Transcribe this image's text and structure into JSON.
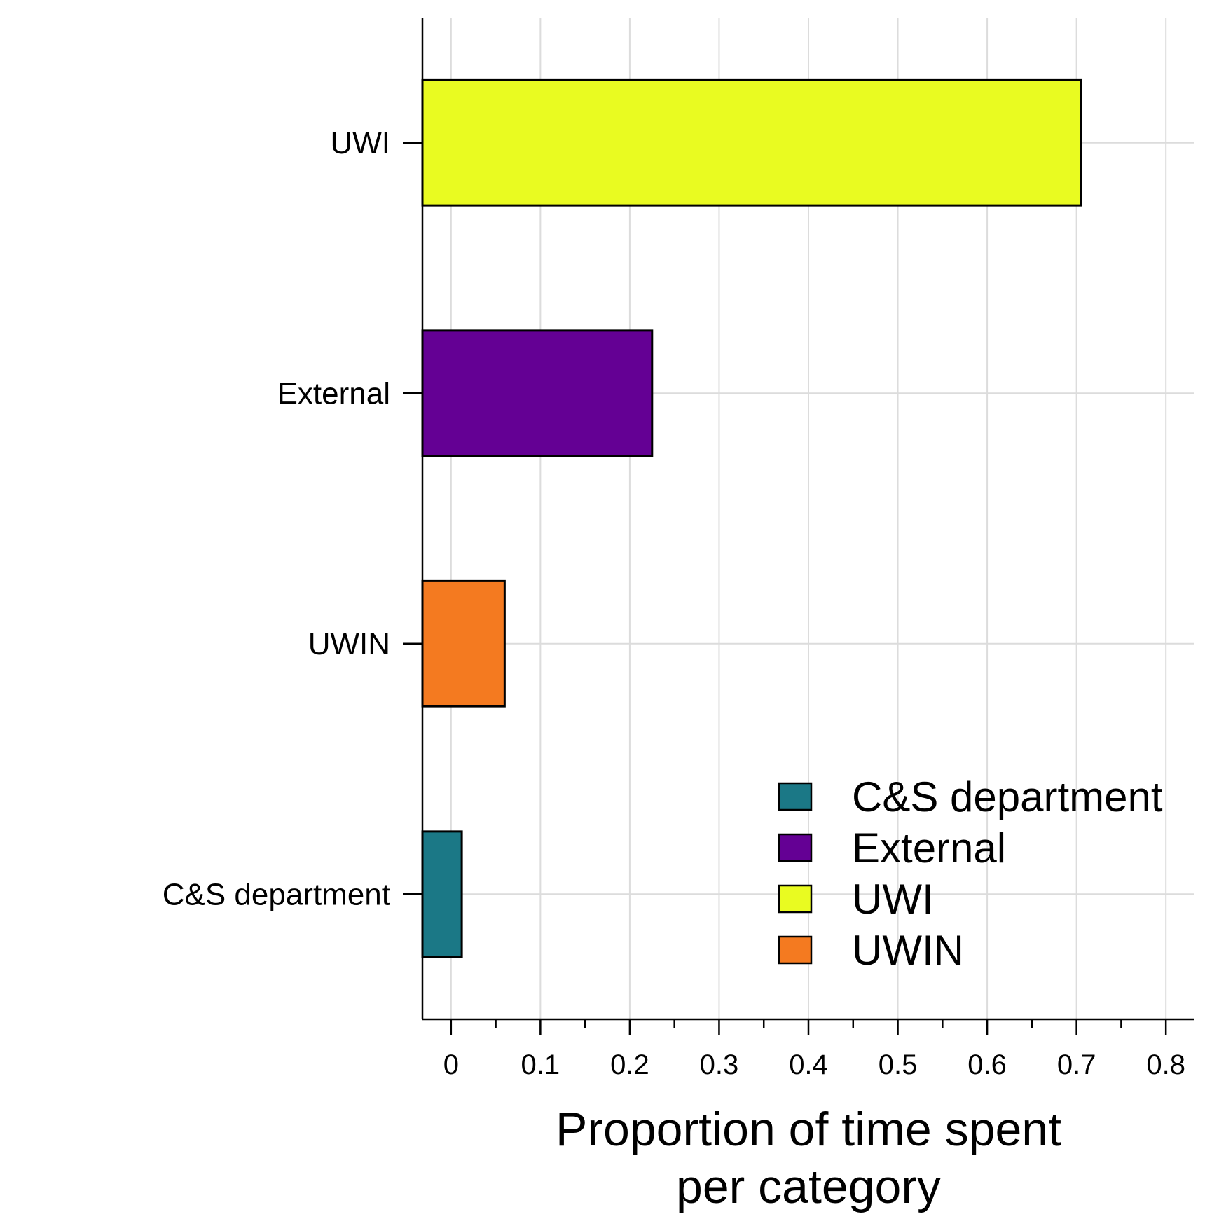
{
  "chart_data": {
    "type": "bar",
    "orientation": "horizontal",
    "categories": [
      "C&S department",
      "UWIN",
      "External",
      "UWI"
    ],
    "values": [
      0.012,
      0.06,
      0.225,
      0.705
    ],
    "colors": [
      "#1b7886",
      "#f47a20",
      "#640094",
      "#e9fb21"
    ],
    "xlabel_lines": [
      "Proportion of time spent",
      "per category"
    ],
    "xlim": [
      -0.032,
      0.832
    ],
    "xticks": [
      0,
      0.1,
      0.2,
      0.3,
      0.4,
      0.5,
      0.6,
      0.7,
      0.8
    ],
    "xtick_labels": [
      "0",
      "0.1",
      "0.2",
      "0.3",
      "0.4",
      "0.5",
      "0.6",
      "0.7",
      "0.8"
    ],
    "grid": true,
    "legend": {
      "position": "bottom-right",
      "entries": [
        {
          "label": "C&S department",
          "color": "#1b7886"
        },
        {
          "label": "External",
          "color": "#640094"
        },
        {
          "label": "UWI",
          "color": "#e9fb21"
        },
        {
          "label": "UWIN",
          "color": "#f47a20"
        }
      ]
    }
  }
}
